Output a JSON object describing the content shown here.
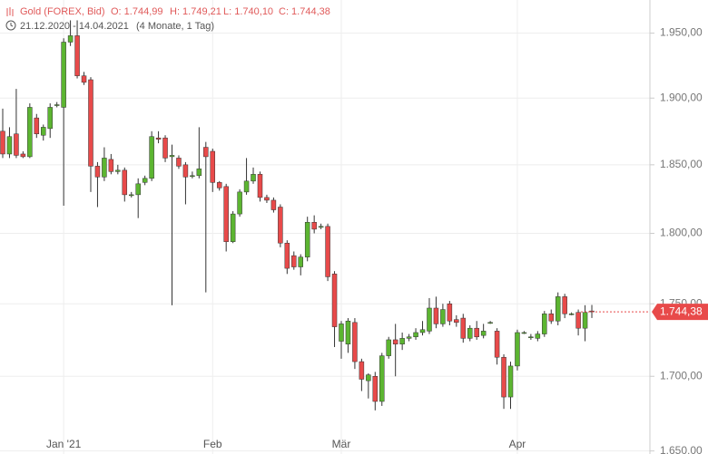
{
  "header": {
    "title": "Gold (FOREX, Bid)",
    "ohlc": [
      "O: 1.744,99",
      "H: 1.749,21",
      "L: 1.740,10",
      "C: 1.744,38"
    ],
    "range": "21.12.2020 - 14.04.2021",
    "duration": "(4 Monate, 1 Tag)"
  },
  "chart_data": {
    "type": "candlestick",
    "log": true,
    "grid": true,
    "up_color": "#5cb531",
    "down_color": "#e84a4a",
    "wick_color": "#333333",
    "ylim": [
      1648,
      1976
    ],
    "yticks": [
      {
        "value": 1650,
        "label": "1.650,00"
      },
      {
        "value": 1700,
        "label": "1.700,00"
      },
      {
        "value": 1750,
        "label": "1.750,00"
      },
      {
        "value": 1800,
        "label": "1.800,00"
      },
      {
        "value": 1850,
        "label": "1.850,00"
      },
      {
        "value": 1900,
        "label": "1.900,00"
      },
      {
        "value": 1950,
        "label": "1.950,00"
      }
    ],
    "last_price": {
      "value": 1744.38,
      "label": "1.744,38"
    },
    "categories": [
      null,
      null,
      null,
      null,
      null,
      null,
      null,
      null,
      null,
      "Jan '21",
      null,
      null,
      null,
      null,
      null,
      null,
      null,
      null,
      null,
      null,
      null,
      null,
      null,
      null,
      null,
      null,
      null,
      null,
      null,
      null,
      null,
      "Feb",
      null,
      null,
      null,
      null,
      null,
      null,
      null,
      null,
      null,
      null,
      null,
      null,
      null,
      null,
      null,
      null,
      null,
      null,
      "Mär",
      null,
      null,
      null,
      null,
      null,
      null,
      null,
      null,
      null,
      null,
      null,
      null,
      null,
      null,
      null,
      null,
      null,
      null,
      null,
      null,
      null,
      null,
      null,
      null,
      null,
      "Apr",
      null,
      null,
      null,
      null,
      null,
      null,
      null,
      null,
      null,
      null,
      null
    ],
    "open": [
      1875,
      1858,
      1873,
      1858,
      1856,
      1885,
      1872,
      1877,
      1895,
      1893,
      1943,
      1948,
      1917,
      1914,
      1849,
      1841,
      1854,
      1845,
      1846,
      1828,
      1828,
      1837,
      1840,
      1870,
      1870,
      1856,
      1855,
      1850,
      1842,
      1842,
      1863,
      1860,
      1837,
      1834,
      1794,
      1814,
      1830,
      1838,
      1843,
      1826,
      1824,
      1819,
      1793,
      1784,
      1776,
      1783,
      1808,
      1805,
      1805,
      1771,
      1724,
      1722,
      1737,
      1710,
      1697,
      1700,
      1683,
      1714,
      1725,
      1722,
      1726,
      1727,
      1730,
      1731,
      1747,
      1736,
      1750,
      1739,
      1740,
      1726,
      1733,
      1728,
      1737,
      1731,
      1713,
      1686,
      1707,
      1730,
      1727,
      1726,
      1729,
      1743,
      1738,
      1755,
      1743,
      1744,
      1733,
      1744.99
    ],
    "high": [
      1892,
      1878,
      1907,
      1860,
      1896,
      1888,
      1880,
      1896,
      1897,
      1946,
      1960,
      1960,
      1920,
      1916,
      1852,
      1863,
      1858,
      1850,
      1848,
      1830,
      1840,
      1842,
      1875,
      1875,
      1872,
      1865,
      1857,
      1852,
      1845,
      1878,
      1867,
      1862,
      1838,
      1836,
      1816,
      1832,
      1855,
      1848,
      1845,
      1828,
      1826,
      1821,
      1795,
      1787,
      1785,
      1812,
      1813,
      1807,
      1807,
      1773,
      1738,
      1740,
      1740,
      1712,
      1702,
      1703,
      1716,
      1727,
      1736,
      1730,
      1729,
      1733,
      1738,
      1754,
      1755,
      1750,
      1752,
      1742,
      1743,
      1735,
      1738,
      1736,
      1738,
      1733,
      1715,
      1710,
      1732,
      1731,
      1729,
      1731,
      1745,
      1746,
      1758,
      1757,
      1744,
      1746,
      1749,
      1749.21
    ],
    "low": [
      1855,
      1855,
      1855,
      1855,
      1855,
      1870,
      1868,
      1870,
      1893,
      1820,
      1940,
      1915,
      1910,
      1830,
      1819,
      1838,
      1843,
      1843,
      1823,
      1826,
      1811,
      1835,
      1838,
      1866,
      1852,
      1749,
      1847,
      1821,
      1840,
      1840,
      1758,
      1830,
      1831,
      1787,
      1793,
      1812,
      1828,
      1836,
      1823,
      1822,
      1815,
      1790,
      1771,
      1774,
      1770,
      1780,
      1800,
      1803,
      1766,
      1720,
      1712,
      1716,
      1705,
      1690,
      1685,
      1677,
      1680,
      1712,
      1700,
      1718,
      1724,
      1725,
      1728,
      1729,
      1733,
      1734,
      1735,
      1734,
      1723,
      1724,
      1725,
      1726,
      1736,
      1708,
      1678,
      1678,
      1704,
      1729,
      1725,
      1724,
      1727,
      1736,
      1735,
      1740,
      1742,
      1728,
      1724,
      1740.1
    ],
    "close": [
      1858,
      1871,
      1857,
      1856,
      1893,
      1873,
      1878,
      1893,
      1895,
      1943,
      1948,
      1917,
      1912,
      1849,
      1841,
      1855,
      1845,
      1846,
      1828,
      1828,
      1836,
      1840,
      1871,
      1869,
      1855,
      1857,
      1849,
      1841,
      1842,
      1847,
      1856,
      1837,
      1833,
      1794,
      1814,
      1830,
      1838,
      1843,
      1826,
      1824,
      1817,
      1793,
      1775,
      1776,
      1783,
      1808,
      1803,
      1805,
      1769,
      1734,
      1736,
      1738,
      1710,
      1698,
      1701,
      1683,
      1714,
      1725,
      1722,
      1726,
      1727,
      1730,
      1732,
      1747,
      1736,
      1746,
      1738,
      1737,
      1726,
      1733,
      1727,
      1731,
      1737,
      1713,
      1686,
      1707,
      1730,
      1730,
      1727,
      1729,
      1743,
      1738,
      1755,
      1743,
      1743,
      1733,
      1744,
      1744.38
    ]
  }
}
